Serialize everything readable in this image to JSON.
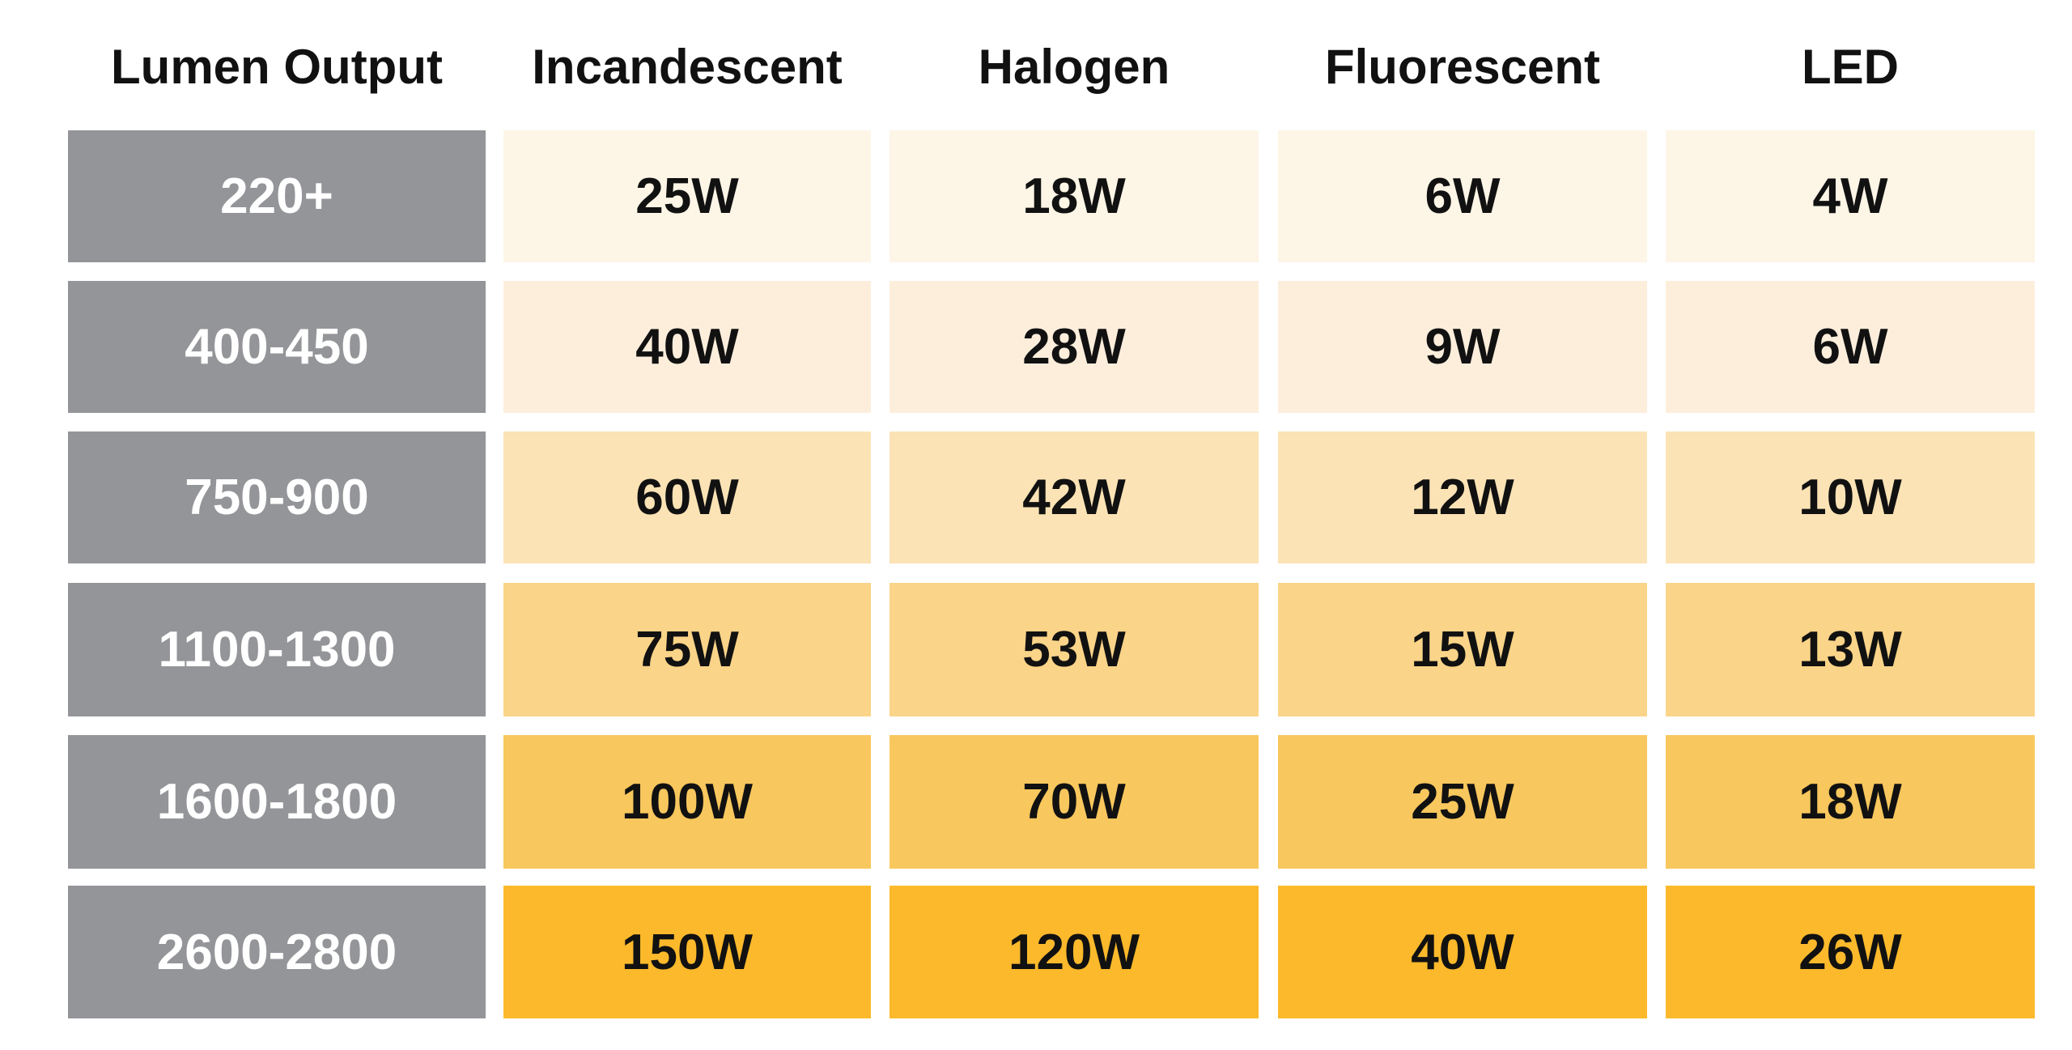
{
  "table": {
    "header": [
      "Lumen Output",
      "Incandescent",
      "Halogen",
      "Fluorescent",
      "LED"
    ],
    "rows": [
      [
        "220+",
        "25W",
        "18W",
        "6W",
        "4W"
      ],
      [
        "400-450",
        "40W",
        "28W",
        "9W",
        "6W"
      ],
      [
        "750-900",
        "60W",
        "42W",
        "12W",
        "10W"
      ],
      [
        "1100-1300",
        "75W",
        "53W",
        "15W",
        "13W"
      ],
      [
        "1600-1800",
        "100W",
        "70W",
        "25W",
        "18W"
      ],
      [
        "2600-2800",
        "150W",
        "120W",
        "40W",
        "26W"
      ]
    ]
  }
}
